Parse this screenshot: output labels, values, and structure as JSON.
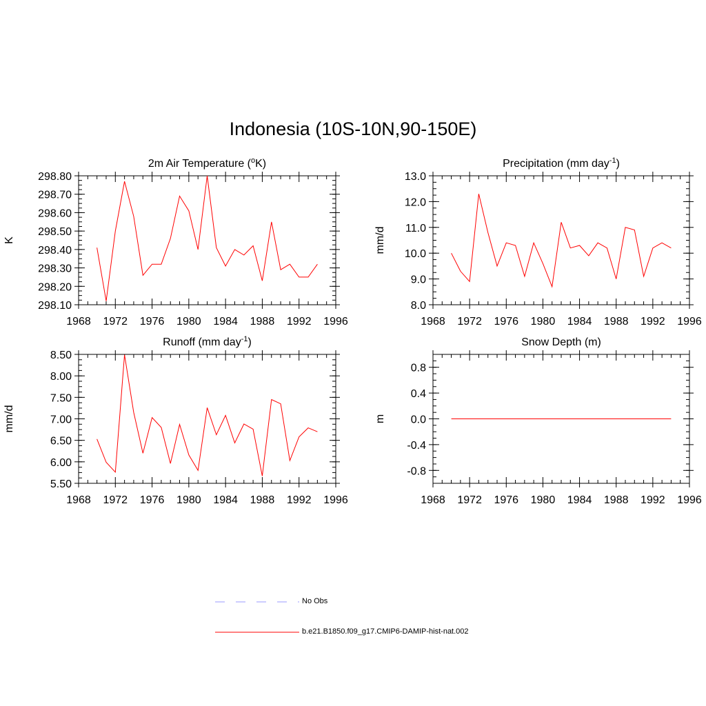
{
  "figure": {
    "title": "Indonesia (10S-10N,90-150E)"
  },
  "chart_data": [
    {
      "type": "line",
      "title": "2m Air Temperature (",
      "title_sup": "o",
      "title_after": "K)",
      "ylabel": "K",
      "xlim": [
        1968,
        1996
      ],
      "ylim": [
        298.1,
        298.8
      ],
      "xticks": [
        "1968",
        "1972",
        "1976",
        "1980",
        "1984",
        "1988",
        "1992",
        "1996"
      ],
      "yticks": [
        "298.10",
        "298.20",
        "298.30",
        "298.40",
        "298.50",
        "298.60",
        "298.70",
        "298.80"
      ],
      "x": [
        1970,
        1971,
        1972,
        1973,
        1974,
        1975,
        1976,
        1977,
        1978,
        1979,
        1980,
        1981,
        1982,
        1983,
        1984,
        1985,
        1986,
        1987,
        1988,
        1989,
        1990,
        1991,
        1992,
        1993,
        1994
      ],
      "series": [
        {
          "name": "b.e21.B1850.f09_g17.CMIP6-DAMIP-hist-nat.002",
          "color": "#ff0000",
          "values": [
            298.41,
            298.12,
            298.5,
            298.77,
            298.58,
            298.26,
            298.32,
            298.32,
            298.46,
            298.69,
            298.61,
            298.4,
            298.8,
            298.41,
            298.31,
            298.4,
            298.37,
            298.42,
            298.23,
            298.55,
            298.29,
            298.32,
            298.25,
            298.25,
            298.32
          ]
        }
      ]
    },
    {
      "type": "line",
      "title": "Precipitation (mm day",
      "title_sup": "-1",
      "title_after": ")",
      "ylabel": "mm/d",
      "xlim": [
        1968,
        1996
      ],
      "ylim": [
        8.0,
        13.0
      ],
      "xticks": [
        "1968",
        "1972",
        "1976",
        "1980",
        "1984",
        "1988",
        "1992",
        "1996"
      ],
      "yticks": [
        "8.0",
        "9.0",
        "10.0",
        "11.0",
        "12.0",
        "13.0"
      ],
      "x": [
        1970,
        1971,
        1972,
        1973,
        1974,
        1975,
        1976,
        1977,
        1978,
        1979,
        1980,
        1981,
        1982,
        1983,
        1984,
        1985,
        1986,
        1987,
        1988,
        1989,
        1990,
        1991,
        1992,
        1993,
        1994
      ],
      "series": [
        {
          "name": "b.e21.B1850.f09_g17.CMIP6-DAMIP-hist-nat.002",
          "color": "#ff0000",
          "values": [
            10.0,
            9.3,
            8.9,
            12.3,
            10.8,
            9.5,
            10.4,
            10.3,
            9.1,
            10.4,
            9.6,
            8.7,
            11.2,
            10.2,
            10.3,
            9.9,
            10.4,
            10.2,
            9.0,
            11.0,
            10.9,
            9.1,
            10.2,
            10.4,
            10.2
          ]
        }
      ]
    },
    {
      "type": "line",
      "title": "Runoff (mm day",
      "title_sup": "-1",
      "title_after": ")",
      "ylabel": "mm/d",
      "xlim": [
        1968,
        1996
      ],
      "ylim": [
        5.5,
        8.5
      ],
      "xticks": [
        "1968",
        "1972",
        "1976",
        "1980",
        "1984",
        "1988",
        "1992",
        "1996"
      ],
      "yticks": [
        "5.50",
        "6.00",
        "6.50",
        "7.00",
        "7.50",
        "8.00",
        "8.50"
      ],
      "x": [
        1970,
        1971,
        1972,
        1973,
        1974,
        1975,
        1976,
        1977,
        1978,
        1979,
        1980,
        1981,
        1982,
        1983,
        1984,
        1985,
        1986,
        1987,
        1988,
        1989,
        1990,
        1991,
        1992,
        1993,
        1994
      ],
      "series": [
        {
          "name": "b.e21.B1850.f09_g17.CMIP6-DAMIP-hist-nat.002",
          "color": "#ff0000",
          "values": [
            6.53,
            5.99,
            5.76,
            8.49,
            7.15,
            6.2,
            7.03,
            6.8,
            5.96,
            6.87,
            6.16,
            5.8,
            7.26,
            6.63,
            7.08,
            6.44,
            6.88,
            6.76,
            5.67,
            7.45,
            7.35,
            6.03,
            6.58,
            6.79,
            6.7
          ]
        }
      ]
    },
    {
      "type": "line",
      "title": "Snow Depth (m)",
      "title_sup": "",
      "title_after": "",
      "ylabel": "m",
      "xlim": [
        1968,
        1996
      ],
      "ylim": [
        -1.0,
        1.0
      ],
      "xticks": [
        "1968",
        "1972",
        "1976",
        "1980",
        "1984",
        "1988",
        "1992",
        "1996"
      ],
      "yticks": [
        "-0.8",
        "-0.4",
        "0.0",
        "0.4",
        "0.8"
      ],
      "ytick_values": [
        -0.8,
        -0.4,
        0.0,
        0.4,
        0.8
      ],
      "x": [
        1970,
        1971,
        1972,
        1973,
        1974,
        1975,
        1976,
        1977,
        1978,
        1979,
        1980,
        1981,
        1982,
        1983,
        1984,
        1985,
        1986,
        1987,
        1988,
        1989,
        1990,
        1991,
        1992,
        1993,
        1994
      ],
      "series": [
        {
          "name": "b.e21.B1850.f09_g17.CMIP6-DAMIP-hist-nat.002",
          "color": "#ff0000",
          "values": [
            0,
            0,
            0,
            0,
            0,
            0,
            0,
            0,
            0,
            0,
            0,
            0,
            0,
            0,
            0,
            0,
            0,
            0,
            0,
            0,
            0,
            0,
            0,
            0,
            0
          ]
        }
      ]
    }
  ],
  "legend": {
    "placement": "bottom-center",
    "items": [
      {
        "label": "No Obs",
        "color": "#9999ff",
        "style": "dashed"
      },
      {
        "label": "b.e21.B1850.f09_g17.CMIP6-DAMIP-hist-nat.002",
        "color": "#ff0000",
        "style": "solid"
      }
    ]
  }
}
